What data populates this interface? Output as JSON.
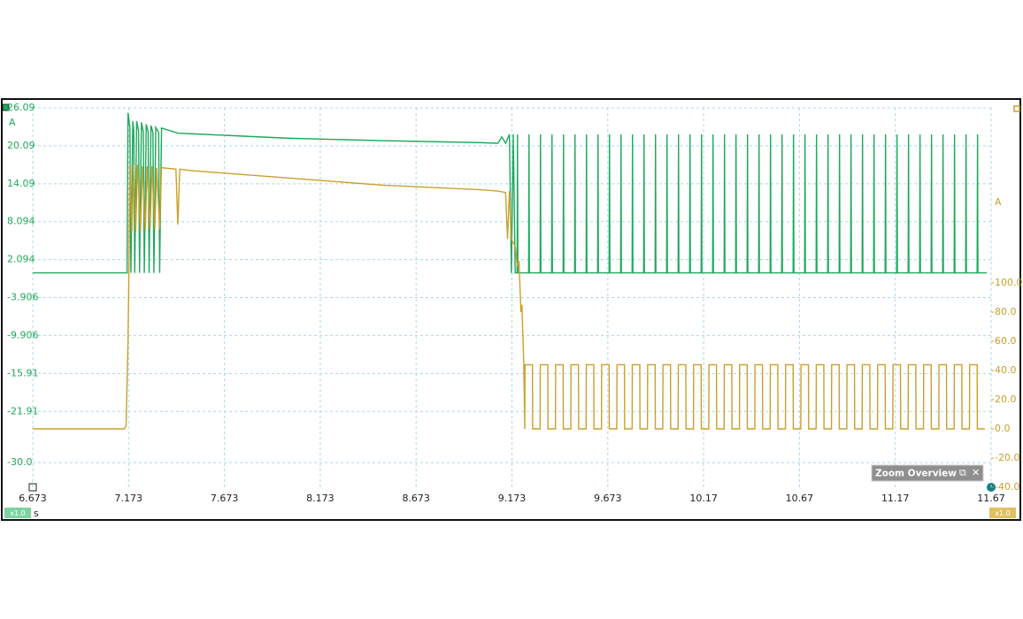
{
  "chart_data": {
    "type": "line",
    "x_label": "s",
    "y_label": "A",
    "y2_label": "A",
    "xlim": [
      6.673,
      11.673
    ],
    "xticks": [
      6.673,
      7.173,
      7.673,
      8.173,
      8.673,
      9.173,
      9.673,
      {
        "value": 10.173,
        "label": "10.17"
      },
      {
        "value": 10.673,
        "label": "10.67"
      },
      {
        "value": 11.173,
        "label": "11.17"
      },
      {
        "value": 11.673,
        "label": "11.67"
      }
    ],
    "ylim": [
      -33.9,
      26.09
    ],
    "yticks": [
      26.09,
      20.09,
      14.09,
      8.094,
      2.094,
      -3.906,
      -9.906,
      -15.91,
      -21.91,
      {
        "value": -30,
        "label": "-30.0"
      }
    ],
    "y2lim": [
      -40,
      220
    ],
    "y2ticks": [
      {
        "value": 100,
        "label": "100.0"
      },
      {
        "value": 80,
        "label": "80.0"
      },
      {
        "value": 60,
        "label": "60.0"
      },
      {
        "value": 40,
        "label": "40.0"
      },
      {
        "value": 20,
        "label": "20.0"
      },
      {
        "value": 0,
        "label": "0.0"
      },
      {
        "value": -20,
        "label": "-20.0"
      },
      {
        "value": -40,
        "label": "-40.0"
      }
    ],
    "grid": true,
    "series": [
      {
        "color": "#1ea85c",
        "x": [
          6.673,
          7.15,
          7.165,
          7.17,
          7.18,
          7.185,
          7.195,
          7.2,
          7.205,
          7.215,
          7.225,
          7.23,
          7.24,
          7.25,
          7.255,
          7.265,
          7.275,
          7.28,
          7.29,
          7.3,
          7.305,
          7.315,
          7.33,
          7.335,
          7.345,
          7.43,
          7.5,
          8.0,
          8.5,
          9.0,
          9.1,
          9.12,
          9.14,
          9.16,
          9.17,
          9.18,
          9.19,
          9.2,
          9.202,
          9.204,
          9.26,
          9.262,
          9.264,
          9.32,
          9.322,
          9.324,
          9.38,
          9.382,
          9.384,
          9.44,
          9.442,
          9.444,
          9.5,
          9.502,
          9.504,
          9.56,
          9.562,
          9.564,
          9.62,
          9.622,
          9.624,
          9.68,
          9.682,
          9.684,
          9.74,
          9.742,
          9.744,
          9.8,
          9.802,
          9.804,
          9.86,
          9.862,
          9.864,
          9.92,
          9.922,
          9.924,
          9.98,
          9.982,
          9.984,
          10.04,
          10.042,
          10.044,
          10.1,
          10.102,
          10.104,
          10.16,
          10.162,
          10.164,
          10.22,
          10.222,
          10.224,
          10.28,
          10.282,
          10.284,
          10.34,
          10.342,
          10.344,
          10.4,
          10.402,
          10.404,
          10.46,
          10.462,
          10.464,
          10.52,
          10.522,
          10.524,
          10.58,
          10.582,
          10.584,
          10.64,
          10.642,
          10.644,
          10.7,
          10.702,
          10.704,
          10.76,
          10.762,
          10.764,
          10.82,
          10.822,
          10.824,
          10.88,
          10.882,
          10.884,
          10.94,
          10.942,
          10.944,
          11.0,
          11.002,
          11.004,
          11.06,
          11.062,
          11.064,
          11.12,
          11.122,
          11.124,
          11.18,
          11.182,
          11.184,
          11.24,
          11.242,
          11.244,
          11.3,
          11.302,
          11.304,
          11.36,
          11.362,
          11.364,
          11.42,
          11.422,
          11.424,
          11.48,
          11.482,
          11.484,
          11.54,
          11.542,
          11.544,
          11.6,
          11.602,
          11.604,
          11.65
        ],
        "values": [
          0,
          0,
          0,
          25.3,
          23,
          0,
          24,
          22.5,
          0,
          24,
          22.5,
          0,
          23.8,
          22.3,
          0,
          23.5,
          22.3,
          0,
          23.3,
          22.2,
          0,
          23,
          22.2,
          0,
          22.9,
          22.1,
          22.0,
          21.3,
          20.9,
          20.6,
          20.5,
          21.5,
          20.5,
          21.9,
          0,
          21.9,
          0,
          0,
          21.9,
          0,
          0,
          21.9,
          0,
          0,
          21.9,
          0,
          0,
          21.9,
          0,
          0,
          21.9,
          0,
          0,
          21.9,
          0,
          0,
          21.9,
          0,
          0,
          21.9,
          0,
          0,
          21.9,
          0,
          0,
          21.9,
          0,
          0,
          21.9,
          0,
          0,
          21.9,
          0,
          0,
          21.9,
          0,
          0,
          21.9,
          0,
          0,
          21.9,
          0,
          0,
          21.9,
          0,
          0,
          21.9,
          0,
          0,
          21.9,
          0,
          0,
          21.9,
          0,
          0,
          21.9,
          0,
          0,
          21.9,
          0,
          0,
          21.9,
          0,
          0,
          21.9,
          0,
          0,
          21.9,
          0,
          0,
          21.9,
          0,
          0,
          21.9,
          0,
          0,
          21.9,
          0,
          0,
          21.9,
          0,
          0,
          21.9,
          0,
          0,
          21.9,
          0,
          0,
          21.9,
          0,
          0,
          21.9,
          0,
          0,
          21.9,
          0,
          0,
          21.9,
          0,
          0,
          21.9,
          0,
          0,
          21.9,
          0,
          0,
          21.9,
          0,
          0,
          21.9,
          0,
          0,
          21.9,
          0,
          0,
          21.9,
          0,
          0,
          21.9,
          0,
          0
        ]
      },
      {
        "color": "#c9a02c",
        "axis": "y2",
        "x": [
          6.673,
          7.15,
          7.16,
          7.17,
          7.175,
          7.18,
          7.19,
          7.2,
          7.21,
          7.22,
          7.235,
          7.245,
          7.26,
          7.27,
          7.285,
          7.295,
          7.31,
          7.32,
          7.335,
          7.345,
          7.42,
          7.43,
          7.44,
          7.5,
          8.0,
          8.5,
          9.0,
          9.1,
          9.14,
          9.15,
          9.16,
          9.17,
          9.19,
          9.2,
          9.21,
          9.22,
          9.225,
          9.235,
          9.24,
          9.241,
          9.28,
          9.281,
          9.32,
          9.321,
          9.36,
          9.361,
          9.4,
          9.401,
          9.44,
          9.441,
          9.48,
          9.481,
          9.52,
          9.521,
          9.56,
          9.561,
          9.6,
          9.601,
          9.64,
          9.641,
          9.68,
          9.681,
          9.72,
          9.721,
          9.76,
          9.761,
          9.8,
          9.801,
          9.84,
          9.841,
          9.88,
          9.881,
          9.92,
          9.921,
          9.96,
          9.961,
          10.0,
          10.001,
          10.04,
          10.041,
          10.08,
          10.081,
          10.12,
          10.121,
          10.16,
          10.161,
          10.2,
          10.201,
          10.24,
          10.241,
          10.28,
          10.281,
          10.32,
          10.321,
          10.36,
          10.361,
          10.4,
          10.401,
          10.44,
          10.441,
          10.48,
          10.481,
          10.52,
          10.521,
          10.56,
          10.561,
          10.6,
          10.601,
          10.64,
          10.641,
          10.68,
          10.681,
          10.72,
          10.721,
          10.76,
          10.761,
          10.8,
          10.801,
          10.84,
          10.841,
          10.88,
          10.881,
          10.92,
          10.921,
          10.96,
          10.961,
          11.0,
          11.001,
          11.04,
          11.041,
          11.08,
          11.081,
          11.12,
          11.121,
          11.16,
          11.161,
          11.2,
          11.201,
          11.24,
          11.241,
          11.28,
          11.281,
          11.32,
          11.321,
          11.36,
          11.361,
          11.4,
          11.401,
          11.44,
          11.441,
          11.48,
          11.481,
          11.52,
          11.521,
          11.56,
          11.561,
          11.6,
          11.601,
          11.64
        ],
        "values": [
          0,
          0,
          2,
          60,
          110,
          181,
          135,
          181,
          135,
          181,
          135,
          180,
          136,
          180,
          136,
          180,
          137,
          179,
          137,
          179,
          178,
          140,
          178,
          177,
          172,
          167,
          164,
          163,
          162,
          130,
          163,
          130,
          125,
          112,
          115,
          80,
          85,
          44,
          0,
          44,
          44,
          0,
          0,
          44,
          44,
          0,
          0,
          44,
          44,
          0,
          0,
          44,
          44,
          0,
          0,
          44,
          44,
          0,
          0,
          44,
          44,
          0,
          0,
          44,
          44,
          0,
          0,
          44,
          44,
          0,
          0,
          44,
          44,
          0,
          0,
          44,
          44,
          0,
          0,
          44,
          44,
          0,
          0,
          44,
          44,
          0,
          0,
          44,
          44,
          0,
          0,
          44,
          44,
          0,
          0,
          44,
          44,
          0,
          0,
          44,
          44,
          0,
          0,
          44,
          44,
          0,
          0,
          44,
          44,
          0,
          0,
          44,
          44,
          0,
          0,
          44,
          44,
          0,
          0,
          44,
          44,
          0,
          0,
          44,
          44,
          0,
          0,
          44,
          44,
          0,
          0,
          44,
          44,
          0,
          0,
          44,
          44,
          0,
          0,
          44,
          44,
          0,
          0,
          44,
          44,
          0,
          0,
          44,
          44,
          0,
          0,
          44,
          44,
          0,
          0,
          44,
          44,
          0,
          0
        ]
      }
    ]
  },
  "ui": {
    "left_badge": "x1.0",
    "right_badge": "x1.0",
    "zoom_overview": "Zoom Overview"
  }
}
